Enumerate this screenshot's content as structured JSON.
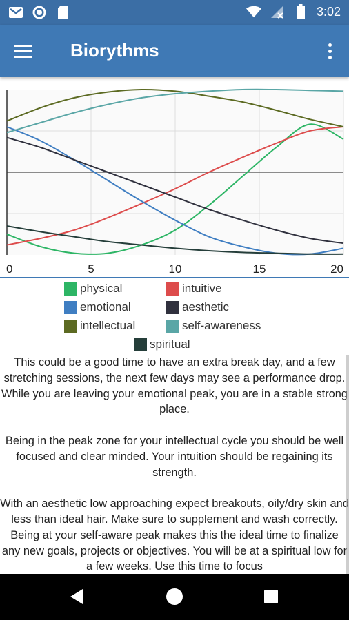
{
  "status_bar": {
    "time": "3:02",
    "icons": [
      "gmail-icon",
      "circle-notification-icon",
      "sd-card-icon",
      "wifi-icon",
      "no-sim-icon",
      "battery-icon"
    ]
  },
  "app_bar": {
    "title": "Biorythms",
    "menu_icon": "hamburger-menu-icon",
    "overflow_icon": "more-vert-icon"
  },
  "chart_data": {
    "type": "line",
    "xlim": [
      0,
      20
    ],
    "ylim": [
      -1,
      1
    ],
    "x_ticks": [
      0,
      5,
      10,
      15,
      20
    ],
    "grid": true,
    "series": [
      {
        "name": "physical",
        "color": "#2db565",
        "x": [
          0,
          2,
          4,
          6,
          8,
          10,
          12,
          14,
          16,
          18,
          20
        ],
        "y": [
          -0.75,
          -0.9,
          -0.98,
          -0.98,
          -0.88,
          -0.7,
          -0.4,
          -0.05,
          0.3,
          0.58,
          0.4
        ]
      },
      {
        "name": "intuitive",
        "color": "#dd4c4c",
        "x": [
          0,
          2,
          4,
          6,
          8,
          10,
          12,
          14,
          16,
          18,
          20
        ],
        "y": [
          -0.88,
          -0.8,
          -0.7,
          -0.55,
          -0.38,
          -0.2,
          0,
          0.18,
          0.35,
          0.5,
          0.55
        ]
      },
      {
        "name": "emotional",
        "color": "#3f7ec2",
        "x": [
          0,
          2,
          4,
          6,
          8,
          10,
          12,
          14,
          16,
          18,
          20
        ],
        "y": [
          0.55,
          0.38,
          0.15,
          -0.1,
          -0.35,
          -0.58,
          -0.78,
          -0.9,
          -0.98,
          -0.99,
          -0.92
        ]
      },
      {
        "name": "aesthetic",
        "color": "#30313e",
        "x": [
          0,
          2,
          4,
          6,
          8,
          10,
          12,
          14,
          16,
          18,
          20
        ],
        "y": [
          0.42,
          0.3,
          0.15,
          0,
          -0.15,
          -0.3,
          -0.45,
          -0.58,
          -0.7,
          -0.8,
          -0.86
        ]
      },
      {
        "name": "intellectual",
        "color": "#5c6a22",
        "x": [
          0,
          2,
          4,
          6,
          8,
          10,
          12,
          14,
          16,
          18,
          20
        ],
        "y": [
          0.62,
          0.78,
          0.9,
          0.97,
          1.0,
          0.98,
          0.92,
          0.85,
          0.75,
          0.64,
          0.55
        ]
      },
      {
        "name": "self-awareness",
        "color": "#5aa6a6",
        "x": [
          0,
          2,
          4,
          6,
          8,
          10,
          12,
          14,
          16,
          18,
          20
        ],
        "y": [
          0.48,
          0.6,
          0.72,
          0.82,
          0.9,
          0.95,
          0.98,
          1.0,
          1.0,
          0.99,
          0.98
        ]
      },
      {
        "name": "spiritual",
        "color": "#253e3a",
        "x": [
          0,
          2,
          4,
          6,
          8,
          10,
          12,
          14,
          16,
          18,
          20
        ],
        "y": [
          -0.65,
          -0.72,
          -0.78,
          -0.84,
          -0.88,
          -0.92,
          -0.95,
          -0.97,
          -0.98,
          -0.99,
          -0.99
        ]
      }
    ]
  },
  "legend": [
    {
      "label": "physical",
      "color": "#2db565"
    },
    {
      "label": "intuitive",
      "color": "#dd4c4c"
    },
    {
      "label": "emotional",
      "color": "#3f7ec2"
    },
    {
      "label": "aesthetic",
      "color": "#30313e"
    },
    {
      "label": "intellectual",
      "color": "#5c6a22"
    },
    {
      "label": "self-awareness",
      "color": "#5aa6a6"
    },
    {
      "label": "spiritual",
      "color": "#253e3a"
    }
  ],
  "description": {
    "paragraph1": "This could be a good time to have an extra break day, and a few stretching sessions, the next few days may see a performance drop. While you are leaving your emotional peak, you are in a stable strong place.",
    "paragraph2": "Being in the peak zone for your intellectual cycle you should be well focused and clear minded. Your intuition should be regaining its strength.",
    "paragraph3": "With an aesthetic low approaching expect breakouts, oily/dry skin and less than ideal hair. Make sure to supplement and wash correctly. Being at your self-aware peak makes this the ideal time to finalize any new goals, projects or objectives. You will be at a spiritual low for a few weeks. Use this time to focus"
  },
  "nav_bar": {
    "icons": [
      "back-icon",
      "home-icon",
      "recent-apps-icon"
    ]
  }
}
